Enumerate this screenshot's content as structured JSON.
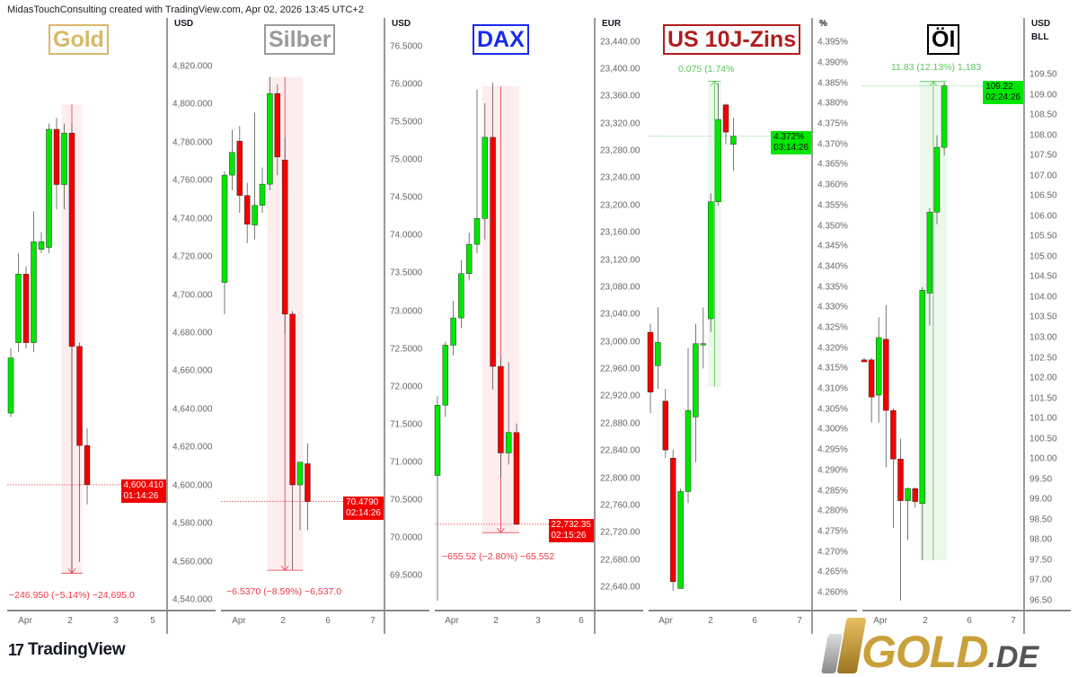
{
  "header": "MidasTouchConsulting created with TradingView.com, Apr 02, 2026 13:45 UTC+2",
  "footer": {
    "brand": "TradingView",
    "logo_glyph": "17",
    "partner_logo": "GOLD",
    "partner_logo_suffix": ".DE"
  },
  "colors": {
    "up": "#00e600",
    "down": "#f20000",
    "measure_down": "#f23645",
    "measure_up": "#5cc45c"
  },
  "panels": [
    {
      "id": "gold",
      "title": "Gold",
      "title_color": "#d8b86a",
      "currency": "USD",
      "currency2": null,
      "ticks": [
        "4,820.000",
        "4,800.000",
        "4,780.000",
        "4,760.000",
        "4,740.000",
        "4,720.000",
        "4,700.000",
        "4,680.000",
        "4,660.000",
        "4,640.000",
        "4,620.000",
        "4,600.000",
        "4,580.000",
        "4,560.000",
        "4,540.000"
      ],
      "tick_values": [
        4820,
        4800,
        4780,
        4760,
        4740,
        4720,
        4700,
        4680,
        4660,
        4640,
        4620,
        4600,
        4580,
        4560,
        4540
      ],
      "x_labels": [
        "Apr",
        "2",
        "3",
        "5"
      ],
      "price": {
        "value": 4600.41,
        "label": "4,600.410",
        "countdown": "01:14:26",
        "bg": "#f20000",
        "fg": "#ffffff"
      },
      "measure": {
        "label": "−246.950 (−5.14%) −24,695.0",
        "from": 4800,
        "to": 4554,
        "from_idx": 7,
        "to_idx": 9,
        "dir": "down"
      },
      "candles": [
        [
          4638,
          4672,
          4636,
          4667
        ],
        [
          4675,
          4722,
          4670,
          4711
        ],
        [
          4711,
          4715,
          4672,
          4675
        ],
        [
          4675,
          4744,
          4670,
          4728
        ],
        [
          4724,
          4733,
          4722,
          4728
        ],
        [
          4725,
          4790,
          4722,
          4787
        ],
        [
          4787,
          4793,
          4745,
          4758
        ],
        [
          4758,
          4790,
          4745,
          4785
        ],
        [
          4785,
          4790,
          4554,
          4673
        ],
        [
          4673,
          4675,
          4560,
          4621
        ],
        [
          4621,
          4630,
          4590,
          4600.41
        ]
      ]
    },
    {
      "id": "silber",
      "title": "Silber",
      "title_color": "#9a9a9a",
      "currency": "USD",
      "currency2": null,
      "ticks": [
        "76.5000",
        "76.0000",
        "75.5000",
        "75.0000",
        "74.5000",
        "74.0000",
        "73.5000",
        "73.0000",
        "72.5000",
        "72.0000",
        "71.5000",
        "71.0000",
        "70.5000",
        "70.0000",
        "69.5000"
      ],
      "tick_values": [
        76.5,
        76,
        75.5,
        75,
        74.5,
        74,
        73.5,
        73,
        72.5,
        72,
        71.5,
        71,
        70.5,
        70,
        69.5
      ],
      "x_labels": [
        "Apr",
        "2",
        "6",
        "7"
      ],
      "price": {
        "value": 70.479,
        "label": "70.4790",
        "countdown": "02:14:26",
        "bg": "#f20000",
        "fg": "#ffffff"
      },
      "measure": {
        "label": "−6.5370 (−8.59%) −6,537.0",
        "from": 76.1,
        "to": 69.57,
        "from_idx": 6,
        "to_idx": 10,
        "dir": "down"
      },
      "candles": [
        [
          73.38,
          74.85,
          72.96,
          74.8
        ],
        [
          74.8,
          75.4,
          74.6,
          75.1
        ],
        [
          75.25,
          75.45,
          74.3,
          74.53
        ],
        [
          74.53,
          74.7,
          73.9,
          74.15
        ],
        [
          74.14,
          75.63,
          73.95,
          74.4
        ],
        [
          74.4,
          74.9,
          74.3,
          74.68
        ],
        [
          74.68,
          76.1,
          74.6,
          75.88
        ],
        [
          75.88,
          76.0,
          74.8,
          75.04
        ],
        [
          75.0,
          75.3,
          72.7,
          72.96
        ],
        [
          72.96,
          73.0,
          69.57,
          70.7
        ],
        [
          70.7,
          71.0,
          70.1,
          71.0
        ],
        [
          70.98,
          71.25,
          70.1,
          70.479
        ]
      ]
    },
    {
      "id": "dax",
      "title": "DAX",
      "title_color": "#1a2be8",
      "currency": "EUR",
      "currency2": null,
      "ticks": [
        "23,440.00",
        "23,400.00",
        "23,360.00",
        "23,320.00",
        "23,280.00",
        "23,240.00",
        "23,200.00",
        "23,160.00",
        "23,120.00",
        "23,080.00",
        "23,040.00",
        "23,000.00",
        "22,960.00",
        "22,920.00",
        "22,880.00",
        "22,840.00",
        "22,800.00",
        "22,760.00",
        "22,720.00",
        "22,680.00",
        "22,640.00"
      ],
      "tick_values": [
        23440,
        23400,
        23360,
        23320,
        23280,
        23240,
        23200,
        23160,
        23120,
        23080,
        23040,
        23000,
        22960,
        22920,
        22880,
        22840,
        22800,
        22760,
        22720,
        22680,
        22640
      ],
      "x_labels": [
        "Apr",
        "2",
        "3",
        "6"
      ],
      "price": {
        "value": 22732.35,
        "label": "22,732.35",
        "countdown": "02:15:26",
        "bg": "#f20000",
        "fg": "#ffffff"
      },
      "measure": {
        "label": "−655.52 (−2.80%) −65,552",
        "from": 23375,
        "to": 22720,
        "from_idx": 6,
        "to_idx": 10,
        "dir": "down"
      },
      "candles": [
        [
          22804,
          22920,
          22620,
          22907
        ],
        [
          22907,
          23000,
          22890,
          22995
        ],
        [
          22995,
          23060,
          22980,
          23035
        ],
        [
          23035,
          23120,
          23020,
          23100
        ],
        [
          23100,
          23160,
          23090,
          23143
        ],
        [
          23143,
          23370,
          23130,
          23181
        ],
        [
          23181,
          23350,
          23150,
          23300
        ],
        [
          23300,
          23380,
          22930,
          22964
        ],
        [
          22964,
          22980,
          22800,
          22837
        ],
        [
          22837,
          22970,
          22820,
          22867
        ],
        [
          22867,
          22880,
          22732,
          22732.35
        ]
      ]
    },
    {
      "id": "us10y",
      "title": "US 10J-Zins",
      "title_color": "#b01e1e",
      "currency": "%",
      "currency2": null,
      "ticks": [
        "4.395%",
        "4.390%",
        "4.385%",
        "4.380%",
        "4.375%",
        "4.370%",
        "4.365%",
        "4.360%",
        "4.355%",
        "4.350%",
        "4.345%",
        "4.340%",
        "4.335%",
        "4.330%",
        "4.325%",
        "4.320%",
        "4.315%",
        "4.310%",
        "4.305%",
        "4.300%",
        "4.295%",
        "4.290%",
        "4.285%",
        "4.280%",
        "4.275%",
        "4.270%",
        "4.265%",
        "4.260%"
      ],
      "tick_values": [
        4.395,
        4.39,
        4.385,
        4.38,
        4.375,
        4.37,
        4.365,
        4.36,
        4.355,
        4.35,
        4.345,
        4.34,
        4.335,
        4.33,
        4.325,
        4.32,
        4.315,
        4.31,
        4.305,
        4.3,
        4.295,
        4.29,
        4.285,
        4.28,
        4.275,
        4.27,
        4.265,
        4.26
      ],
      "x_labels": [
        "Apr",
        "2",
        "6",
        "7"
      ],
      "price": {
        "value": 4.372,
        "label": "4.372%",
        "countdown": "03:14:26",
        "bg": "#00e600",
        "fg": "#111111"
      },
      "measure": {
        "label": "0.075 (1.74%",
        "from": 4.3105,
        "to": 4.3855,
        "from_idx": 8,
        "to_idx": 9,
        "dir": "up"
      },
      "candles": [
        [
          4.3239,
          4.326,
          4.304,
          4.3092
        ],
        [
          4.3157,
          4.33,
          4.31,
          4.3214
        ],
        [
          4.307,
          4.31,
          4.293,
          4.295
        ],
        [
          4.293,
          4.295,
          4.2605,
          4.2627
        ],
        [
          4.261,
          4.2855,
          4.261,
          4.2848
        ],
        [
          4.2848,
          4.32,
          4.282,
          4.3047
        ],
        [
          4.3031,
          4.326,
          4.292,
          4.3211
        ],
        [
          4.3211,
          4.33,
          4.315,
          4.3211
        ],
        [
          4.3272,
          4.358,
          4.324,
          4.3559
        ],
        [
          4.3559,
          4.385,
          4.355,
          4.3761
        ],
        [
          4.3797,
          4.38,
          4.37,
          4.373
        ],
        [
          4.37,
          4.3765,
          4.3635,
          4.372
        ]
      ]
    },
    {
      "id": "oil",
      "title": "Öl",
      "title_color": "#000000",
      "currency": "USD",
      "currency2": "BLL",
      "ticks": [
        "109.50",
        "109.00",
        "108.50",
        "108.00",
        "107.50",
        "107.00",
        "106.50",
        "106.00",
        "105.50",
        "105.00",
        "104.50",
        "104.00",
        "103.50",
        "103.00",
        "102.50",
        "102.00",
        "101.50",
        "101.00",
        "100.50",
        "100.00",
        "99.50",
        "99.00",
        "98.50",
        "98.00",
        "97.50",
        "97.00",
        "96.50"
      ],
      "tick_values": [
        109.5,
        109,
        108.5,
        108,
        107.5,
        107,
        106.5,
        106,
        105.5,
        105,
        104.5,
        104,
        103.5,
        103,
        102.5,
        102,
        101.5,
        101,
        100.5,
        100,
        99.5,
        99,
        98.5,
        98,
        97.5,
        97,
        96.5
      ],
      "x_labels": [
        "Apr",
        "2",
        "6",
        "7"
      ],
      "price": {
        "value": 109.22,
        "label": "109.22",
        "countdown": "02:24:26",
        "bg": "#00e600",
        "fg": "#111111"
      },
      "measure": {
        "label": "11.83 (12.13%) 1,183",
        "from": 97.5,
        "to": 109.33,
        "from_idx": 8,
        "to_idx": 11,
        "dir": "up"
      },
      "candles": [
        [
          102.45,
          102.5,
          102.4,
          102.4
        ],
        [
          102.45,
          102.5,
          100.9,
          101.53
        ],
        [
          101.58,
          103.5,
          100.9,
          103.0
        ],
        [
          102.96,
          103.8,
          99.8,
          101.2
        ],
        [
          101.2,
          101.25,
          98.3,
          100.0
        ],
        [
          100.0,
          100.5,
          96.5,
          98.97
        ],
        [
          98.97,
          99.3,
          98.0,
          99.27
        ],
        [
          99.27,
          99.3,
          98.8,
          98.95
        ],
        [
          98.9,
          104.25,
          97.5,
          104.17
        ],
        [
          104.1,
          106.2,
          103.3,
          106.1
        ],
        [
          106.1,
          108.0,
          105.8,
          107.7
        ],
        [
          107.7,
          109.3,
          107.5,
          109.22
        ]
      ]
    }
  ]
}
